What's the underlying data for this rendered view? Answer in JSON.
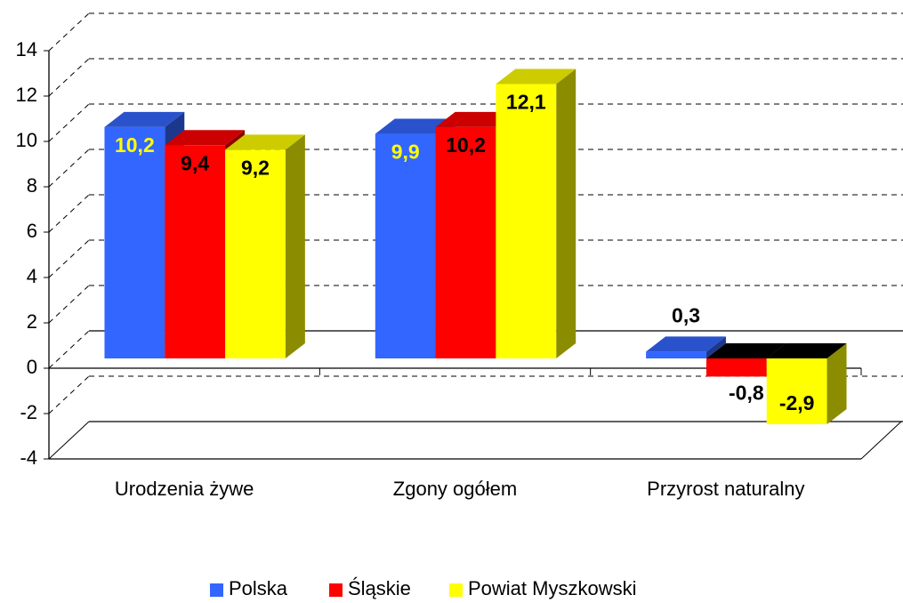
{
  "chart_data": {
    "type": "bar3d",
    "categories": [
      "Urodzenia żywe",
      "Zgony ogółem",
      "Przyrost naturalny"
    ],
    "series": [
      {
        "name": "Polska",
        "color": "#3366ff",
        "values": [
          10.2,
          9.9,
          0.3
        ],
        "value_labels": [
          "10,2",
          "9,9",
          "0,3"
        ]
      },
      {
        "name": "Śląskie",
        "color": "#ff0000",
        "values": [
          9.4,
          10.2,
          -0.8
        ],
        "value_labels": [
          "9,4",
          "10,2",
          "-0,8"
        ]
      },
      {
        "name": "Powiat Myszkowski",
        "color": "#ffff00",
        "values": [
          9.2,
          12.1,
          -2.9
        ],
        "value_labels": [
          "9,2",
          "12,1",
          "-2,9"
        ]
      }
    ],
    "ylim": [
      -4,
      14
    ],
    "yticks": [
      -4,
      -2,
      0,
      2,
      4,
      6,
      8,
      10,
      12,
      14
    ],
    "grid": true,
    "legend": "bottom"
  }
}
